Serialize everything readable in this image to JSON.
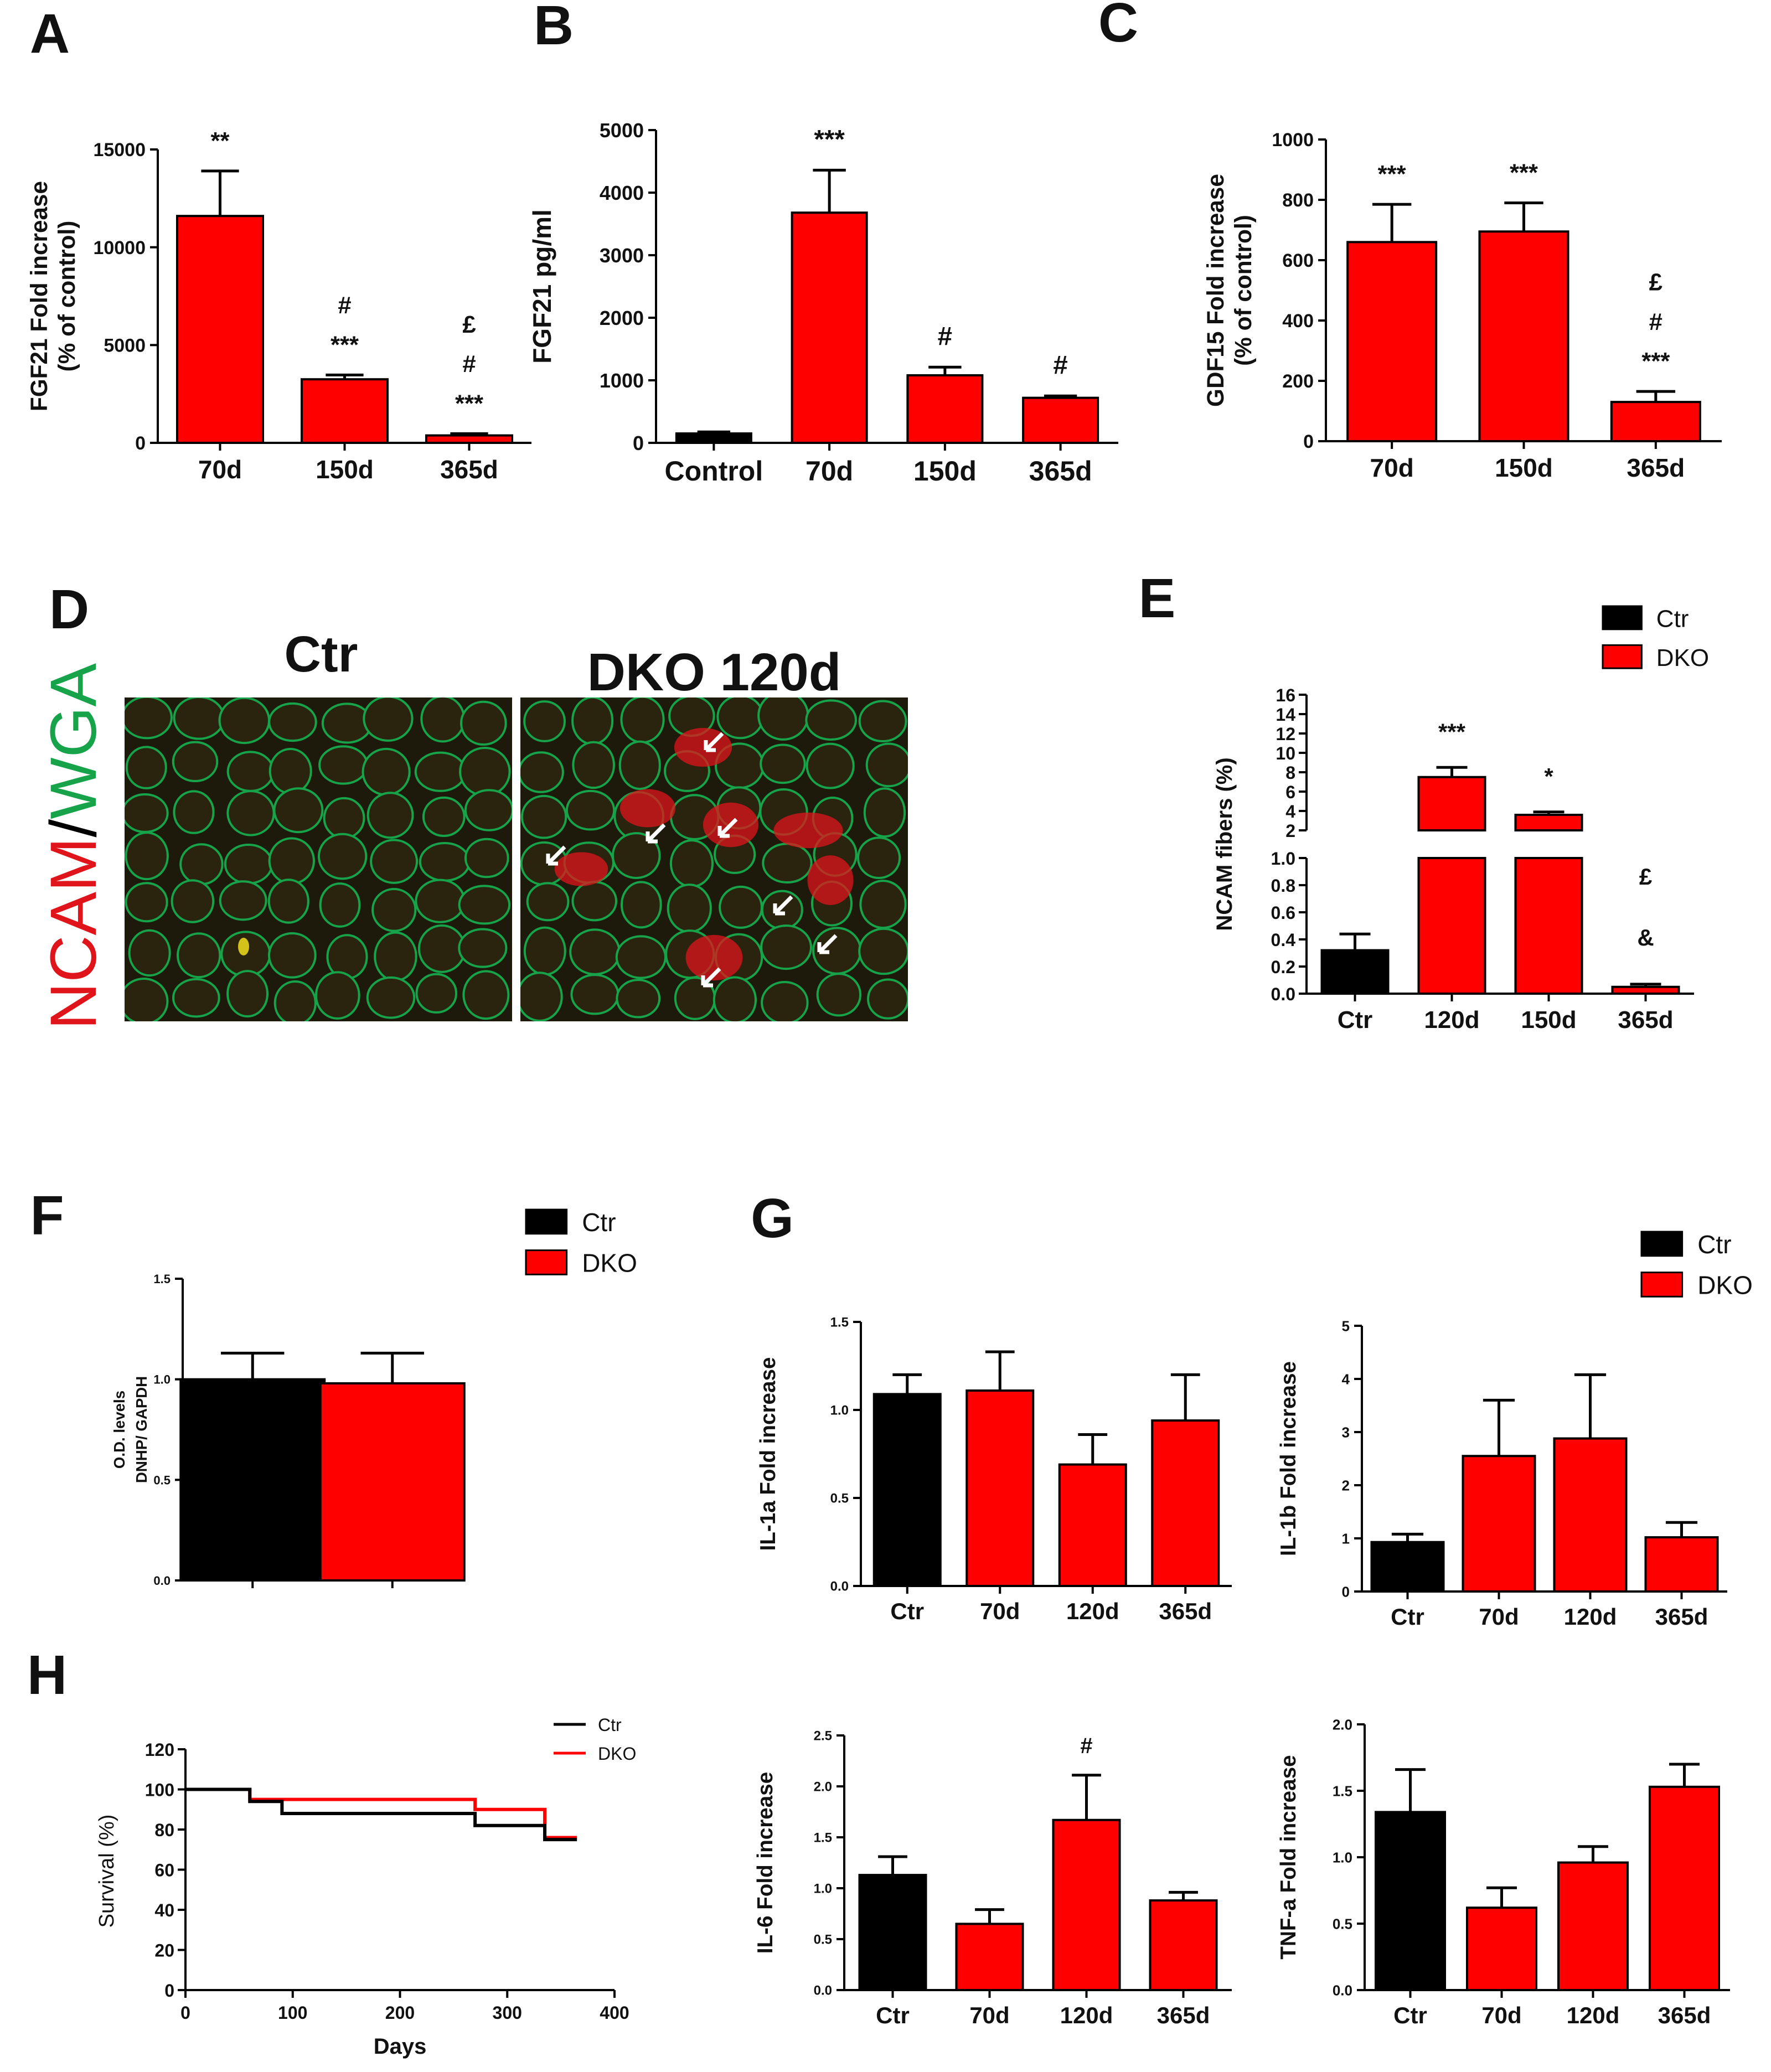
{
  "panel_letters": [
    "A",
    "B",
    "C",
    "D",
    "E",
    "F",
    "G",
    "H"
  ],
  "micrographs": {
    "left_title": "Ctr",
    "right_title": "DKO 120d",
    "stain": {
      "ncam": "NCAM",
      "sep": "/",
      "wga": "WGA"
    },
    "colors": {
      "ncam": "#e0141b",
      "wga": "#16a34a"
    }
  },
  "colors": {
    "ctr": "#000000",
    "dko": "#ff0000",
    "bar_edge": "#000000"
  },
  "chart_data": [
    {
      "panel": "A",
      "type": "bar",
      "categories": [
        "70d",
        "150d",
        "365d"
      ],
      "values": [
        11600,
        3250,
        380
      ],
      "errors": [
        2300,
        220,
        90
      ],
      "colors": [
        "dko",
        "dko",
        "dko"
      ],
      "annotations": [
        [
          "**"
        ],
        [
          "#",
          "***"
        ],
        [
          "£",
          "#",
          "***"
        ]
      ],
      "ylabel": [
        "FGF21 Fold increase",
        "(% of control)"
      ],
      "ylim": [
        0,
        15000
      ],
      "yticks": [
        0,
        5000,
        10000,
        15000
      ],
      "ytick_labels": [
        "0",
        "5000",
        "10000",
        "15000"
      ]
    },
    {
      "panel": "B",
      "type": "bar",
      "categories": [
        "Control",
        "70d",
        "150d",
        "365d"
      ],
      "values": [
        150,
        3680,
        1080,
        720
      ],
      "errors": [
        25,
        680,
        130,
        30
      ],
      "colors": [
        "ctr",
        "dko",
        "dko",
        "dko"
      ],
      "annotations": [
        [],
        [
          "***"
        ],
        [
          "#"
        ],
        [
          "#"
        ]
      ],
      "ylabel": [
        "FGF21 pg/ml"
      ],
      "ylim": [
        0,
        5000
      ],
      "yticks": [
        0,
        1000,
        2000,
        3000,
        4000,
        5000
      ],
      "ytick_labels": [
        "0",
        "1000",
        "2000",
        "3000",
        "4000",
        "5000"
      ]
    },
    {
      "panel": "C",
      "type": "bar",
      "categories": [
        "70d",
        "150d",
        "365d"
      ],
      "values": [
        660,
        695,
        130
      ],
      "errors": [
        125,
        95,
        35
      ],
      "colors": [
        "dko",
        "dko",
        "dko"
      ],
      "annotations": [
        [
          "***"
        ],
        [
          "***"
        ],
        [
          "£",
          "#",
          "***"
        ]
      ],
      "ylabel": [
        "GDF15 Fold increase",
        "(% of control)"
      ],
      "ylim": [
        0,
        1000
      ],
      "yticks": [
        0,
        200,
        400,
        600,
        800,
        1000
      ],
      "ytick_labels": [
        "0",
        "200",
        "400",
        "600",
        "800",
        "1000"
      ]
    },
    {
      "panel": "E",
      "type": "bar",
      "broken_axis": true,
      "categories": [
        "Ctr",
        "120d",
        "150d",
        "365d"
      ],
      "values": [
        0.32,
        7.5,
        3.6,
        0.05
      ],
      "errors": [
        0.12,
        1.0,
        0.3,
        0.02
      ],
      "colors": [
        "ctr",
        "dko",
        "dko",
        "dko"
      ],
      "annotations": [
        [],
        [
          "***"
        ],
        [
          "*"
        ],
        [
          "£",
          "&"
        ]
      ],
      "legend": [
        "Ctr",
        "DKO"
      ],
      "ylabel": [
        "NCAM fibers (%)"
      ],
      "ylim_lower": [
        0,
        1.0
      ],
      "yticks_lower": [
        0,
        0.2,
        0.4,
        0.6,
        0.8,
        1.0
      ],
      "ytick_labels_lower": [
        "0.0",
        "0.2",
        "0.4",
        "0.6",
        "0.8",
        "1.0"
      ],
      "ylim_upper": [
        2,
        16
      ],
      "yticks_upper": [
        2,
        4,
        6,
        8,
        10,
        12,
        14,
        16
      ],
      "ytick_labels_upper": [
        "2",
        "4",
        "6",
        "8",
        "10",
        "12",
        "14",
        "16"
      ]
    },
    {
      "panel": "F",
      "type": "bar",
      "categories": [
        "Ctr",
        "DKO"
      ],
      "values": [
        1.0,
        0.98
      ],
      "errors": [
        0.13,
        0.15
      ],
      "colors": [
        "ctr",
        "dko"
      ],
      "legend": [
        "Ctr",
        "DKO"
      ],
      "ylabel": [
        "O.D. levels",
        "DNHP/ GAPDH"
      ],
      "show_xlabels": false,
      "ylim": [
        0,
        1.5
      ],
      "yticks": [
        0,
        0.5,
        1.0,
        1.5
      ],
      "ytick_labels": [
        "0.0",
        "0.5",
        "1.0",
        "1.5"
      ]
    },
    {
      "panel": "G1",
      "type": "bar",
      "categories": [
        "Ctr",
        "70d",
        "120d",
        "365d"
      ],
      "values": [
        1.09,
        1.11,
        0.69,
        0.94
      ],
      "errors": [
        0.11,
        0.22,
        0.17,
        0.26
      ],
      "colors": [
        "ctr",
        "dko",
        "dko",
        "dko"
      ],
      "ylabel": [
        "IL-1a Fold increase"
      ],
      "ylim": [
        0,
        1.5
      ],
      "yticks": [
        0,
        0.5,
        1.0,
        1.5
      ],
      "ytick_labels": [
        "0.0",
        "0.5",
        "1.0",
        "1.5"
      ]
    },
    {
      "panel": "G2",
      "type": "bar",
      "categories": [
        "Ctr",
        "70d",
        "120d",
        "365d"
      ],
      "values": [
        0.93,
        2.55,
        2.88,
        1.02
      ],
      "errors": [
        0.15,
        1.05,
        1.2,
        0.28
      ],
      "colors": [
        "ctr",
        "dko",
        "dko",
        "dko"
      ],
      "legend": [
        "Ctr",
        "DKO"
      ],
      "ylabel": [
        "IL-1b Fold increase"
      ],
      "ylim": [
        0,
        5
      ],
      "yticks": [
        0,
        1,
        2,
        3,
        4,
        5
      ],
      "ytick_labels": [
        "0",
        "1",
        "2",
        "3",
        "4",
        "5"
      ]
    },
    {
      "panel": "G3",
      "type": "bar",
      "categories": [
        "Ctr",
        "70d",
        "120d",
        "365d"
      ],
      "values": [
        1.13,
        0.65,
        1.67,
        0.88
      ],
      "errors": [
        0.18,
        0.14,
        0.44,
        0.08
      ],
      "colors": [
        "ctr",
        "dko",
        "dko",
        "dko"
      ],
      "annotations": [
        [],
        [],
        [
          "#"
        ],
        []
      ],
      "ylabel": [
        "IL-6 Fold increase"
      ],
      "ylim": [
        0,
        2.5
      ],
      "yticks": [
        0,
        0.5,
        1.0,
        1.5,
        2.0,
        2.5
      ],
      "ytick_labels": [
        "0.0",
        "0.5",
        "1.0",
        "1.5",
        "2.0",
        "2.5"
      ]
    },
    {
      "panel": "G4",
      "type": "bar",
      "categories": [
        "Ctr",
        "70d",
        "120d",
        "365d"
      ],
      "values": [
        1.34,
        0.62,
        0.96,
        1.53
      ],
      "errors": [
        0.32,
        0.15,
        0.12,
        0.17
      ],
      "colors": [
        "ctr",
        "dko",
        "dko",
        "dko"
      ],
      "ylabel": [
        "TNF-a Fold increase"
      ],
      "ylim": [
        0,
        2.0
      ],
      "yticks": [
        0,
        0.5,
        1.0,
        1.5,
        2.0
      ],
      "ytick_labels": [
        "0.0",
        "0.5",
        "1.0",
        "1.5",
        "2.0"
      ]
    },
    {
      "panel": "H",
      "type": "line",
      "step": true,
      "series": [
        {
          "name": "Ctr",
          "color": "ctr",
          "points": [
            [
              0,
              100
            ],
            [
              60,
              100
            ],
            [
              60,
              94
            ],
            [
              90,
              94
            ],
            [
              90,
              88
            ],
            [
              270,
              88
            ],
            [
              270,
              82
            ],
            [
              335,
              82
            ],
            [
              335,
              75
            ],
            [
              365,
              75
            ]
          ]
        },
        {
          "name": "DKO",
          "color": "dko",
          "points": [
            [
              0,
              100
            ],
            [
              60,
              100
            ],
            [
              60,
              95
            ],
            [
              270,
              95
            ],
            [
              270,
              90
            ],
            [
              335,
              90
            ],
            [
              335,
              76
            ],
            [
              365,
              76
            ]
          ]
        }
      ],
      "xlabel": "Days",
      "ylabel": [
        "Survival (%)"
      ],
      "xlim": [
        0,
        400
      ],
      "xticks": [
        0,
        100,
        200,
        300,
        400
      ],
      "xtick_labels": [
        "0",
        "100",
        "200",
        "300",
        "400"
      ],
      "ylim": [
        0,
        120
      ],
      "yticks": [
        0,
        20,
        40,
        60,
        80,
        100,
        120
      ],
      "ytick_labels": [
        "0",
        "20",
        "40",
        "60",
        "80",
        "100",
        "120"
      ]
    }
  ]
}
